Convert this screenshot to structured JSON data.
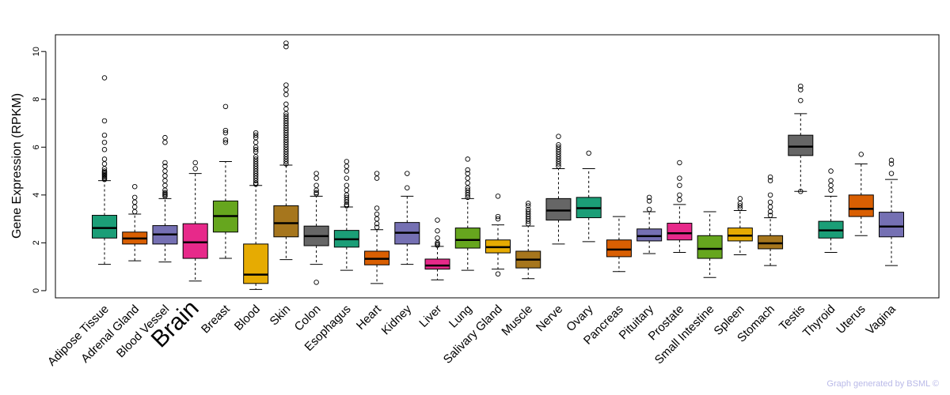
{
  "chart_data": {
    "type": "boxplot",
    "title": "",
    "xlabel": "",
    "ylabel": "Gene Expression (RPKM)",
    "ylim": [
      -0.3,
      10.7
    ],
    "yticks": [
      0,
      2,
      4,
      6,
      8,
      10
    ],
    "highlight": {
      "category": "Brain",
      "color": "#ff0000"
    },
    "categories": [
      "Adipose Tissue",
      "Adrenal Gland",
      "Blood Vessel",
      "Brain",
      "Breast",
      "Blood",
      "Skin",
      "Colon",
      "Esophagus",
      "Heart",
      "Kidney",
      "Liver",
      "Lung",
      "Salivary Gland",
      "Muscle",
      "Nerve",
      "Ovary",
      "Pancreas",
      "Pituitary",
      "Prostate",
      "Small Intestine",
      "Spleen",
      "Stomach",
      "Testis",
      "Thyroid",
      "Uterus",
      "Vagina"
    ],
    "series": [
      {
        "name": "Adipose Tissue",
        "color": "#1b9e77",
        "whisker_low": 1.1,
        "q1": 2.2,
        "median": 2.62,
        "q3": 3.15,
        "whisker_high": 4.6,
        "outliers": [
          4.65,
          4.7,
          4.75,
          4.8,
          4.85,
          4.9,
          4.95,
          5.0,
          5.1,
          5.3,
          5.5,
          5.9,
          6.2,
          6.5,
          7.1,
          8.9
        ]
      },
      {
        "name": "Adrenal Gland",
        "color": "#d95f02",
        "whisker_low": 1.25,
        "q1": 1.95,
        "median": 2.18,
        "q3": 2.45,
        "whisker_high": 3.2,
        "outliers": [
          3.3,
          3.5,
          3.7,
          3.9,
          4.35
        ]
      },
      {
        "name": "Blood Vessel",
        "color": "#7570b3",
        "whisker_low": 1.2,
        "q1": 1.95,
        "median": 2.35,
        "q3": 2.72,
        "whisker_high": 3.85,
        "outliers": [
          3.95,
          4.0,
          4.05,
          4.1,
          4.2,
          4.4,
          4.6,
          4.8,
          5.0,
          5.2,
          5.35,
          6.2,
          6.4
        ]
      },
      {
        "name": "Brain",
        "color": "#e7298a",
        "whisker_low": 0.4,
        "q1": 1.35,
        "median": 2.02,
        "q3": 2.8,
        "whisker_high": 4.9,
        "outliers": [
          5.1,
          5.35
        ]
      },
      {
        "name": "Breast",
        "color": "#66a61e",
        "whisker_low": 1.35,
        "q1": 2.45,
        "median": 3.12,
        "q3": 3.75,
        "whisker_high": 5.4,
        "outliers": [
          6.2,
          6.3,
          6.6,
          6.7,
          7.7
        ]
      },
      {
        "name": "Blood",
        "color": "#e6ab02",
        "whisker_low": 0.05,
        "q1": 0.3,
        "median": 0.67,
        "q3": 1.95,
        "whisker_high": 4.4,
        "outliers": [
          4.45,
          4.5,
          4.6,
          4.7,
          4.8,
          4.9,
          5.0,
          5.1,
          5.2,
          5.3,
          5.4,
          5.5,
          5.6,
          5.8,
          5.9,
          6.0,
          6.2,
          6.4,
          6.5,
          6.6
        ]
      },
      {
        "name": "Skin",
        "color": "#a6761d",
        "whisker_low": 1.3,
        "q1": 2.25,
        "median": 2.82,
        "q3": 3.55,
        "whisker_high": 5.25,
        "outliers": [
          5.3,
          5.4,
          5.5,
          5.6,
          5.7,
          5.8,
          5.9,
          6.0,
          6.1,
          6.2,
          6.3,
          6.4,
          6.5,
          6.6,
          6.7,
          6.8,
          6.9,
          7.0,
          7.1,
          7.2,
          7.3,
          7.4,
          7.6,
          7.8,
          8.2,
          8.4,
          8.6,
          10.2,
          10.35
        ]
      },
      {
        "name": "Colon",
        "color": "#666666",
        "whisker_low": 1.1,
        "q1": 1.88,
        "median": 2.28,
        "q3": 2.7,
        "whisker_high": 3.95,
        "outliers": [
          4.05,
          4.1,
          4.2,
          4.4,
          4.7,
          4.9,
          0.35
        ]
      },
      {
        "name": "Esophagus",
        "color": "#1b9e77",
        "whisker_low": 0.85,
        "q1": 1.82,
        "median": 2.15,
        "q3": 2.52,
        "whisker_high": 3.5,
        "outliers": [
          3.55,
          3.6,
          3.7,
          3.8,
          3.9,
          4.0,
          4.2,
          4.4,
          4.7,
          5.0,
          5.2,
          5.4
        ]
      },
      {
        "name": "Heart",
        "color": "#d95f02",
        "whisker_low": 0.3,
        "q1": 1.08,
        "median": 1.33,
        "q3": 1.65,
        "whisker_high": 2.55,
        "outliers": [
          2.65,
          2.8,
          3.0,
          3.2,
          3.45,
          4.7,
          4.9
        ]
      },
      {
        "name": "Kidney",
        "color": "#7570b3",
        "whisker_low": 1.1,
        "q1": 1.95,
        "median": 2.42,
        "q3": 2.85,
        "whisker_high": 3.95,
        "outliers": [
          4.3,
          4.9
        ]
      },
      {
        "name": "Liver",
        "color": "#e7298a",
        "whisker_low": 0.45,
        "q1": 0.9,
        "median": 1.05,
        "q3": 1.32,
        "whisker_high": 1.85,
        "outliers": [
          1.9,
          1.95,
          2.0,
          2.2,
          2.5,
          2.95
        ]
      },
      {
        "name": "Lung",
        "color": "#66a61e",
        "whisker_low": 0.85,
        "q1": 1.78,
        "median": 2.12,
        "q3": 2.62,
        "whisker_high": 3.85,
        "outliers": [
          3.9,
          4.0,
          4.1,
          4.2,
          4.3,
          4.5,
          4.7,
          4.9,
          5.05,
          5.5
        ]
      },
      {
        "name": "Salivary Gland",
        "color": "#e6ab02",
        "whisker_low": 0.9,
        "q1": 1.58,
        "median": 1.82,
        "q3": 2.12,
        "whisker_high": 2.75,
        "outliers": [
          3.0,
          3.1,
          3.95,
          0.7
        ]
      },
      {
        "name": "Muscle",
        "color": "#a6761d",
        "whisker_low": 0.5,
        "q1": 0.95,
        "median": 1.3,
        "q3": 1.65,
        "whisker_high": 2.7,
        "outliers": [
          2.8,
          2.9,
          3.0,
          3.1,
          3.2,
          3.3,
          3.4,
          3.55,
          3.65
        ]
      },
      {
        "name": "Nerve",
        "color": "#666666",
        "whisker_low": 1.95,
        "q1": 2.95,
        "median": 3.35,
        "q3": 3.85,
        "whisker_high": 5.1,
        "outliers": [
          5.2,
          5.3,
          5.4,
          5.5,
          5.6,
          5.7,
          5.8,
          5.9,
          6.0,
          6.1,
          6.45
        ]
      },
      {
        "name": "Ovary",
        "color": "#1b9e77",
        "whisker_low": 2.05,
        "q1": 3.05,
        "median": 3.45,
        "q3": 3.9,
        "whisker_high": 5.1,
        "outliers": [
          5.75
        ]
      },
      {
        "name": "Pancreas",
        "color": "#d95f02",
        "whisker_low": 0.8,
        "q1": 1.42,
        "median": 1.72,
        "q3": 2.12,
        "whisker_high": 3.1,
        "outliers": []
      },
      {
        "name": "Pituitary",
        "color": "#7570b3",
        "whisker_low": 1.55,
        "q1": 2.08,
        "median": 2.28,
        "q3": 2.58,
        "whisker_high": 3.3,
        "outliers": [
          3.4,
          3.75,
          3.9
        ]
      },
      {
        "name": "Prostate",
        "color": "#e7298a",
        "whisker_low": 1.6,
        "q1": 2.12,
        "median": 2.4,
        "q3": 2.82,
        "whisker_high": 3.6,
        "outliers": [
          3.8,
          4.0,
          4.4,
          4.7,
          5.35
        ]
      },
      {
        "name": "Small Intestine",
        "color": "#66a61e",
        "whisker_low": 0.55,
        "q1": 1.35,
        "median": 1.75,
        "q3": 2.3,
        "whisker_high": 3.3,
        "outliers": []
      },
      {
        "name": "Spleen",
        "color": "#e6ab02",
        "whisker_low": 1.5,
        "q1": 2.08,
        "median": 2.3,
        "q3": 2.62,
        "whisker_high": 3.35,
        "outliers": [
          3.45,
          3.55,
          3.65,
          3.85
        ]
      },
      {
        "name": "Stomach",
        "color": "#a6761d",
        "whisker_low": 1.05,
        "q1": 1.75,
        "median": 1.98,
        "q3": 2.3,
        "whisker_high": 3.05,
        "outliers": [
          3.15,
          3.3,
          3.5,
          3.7,
          4.0,
          4.6,
          4.75
        ]
      },
      {
        "name": "Testis",
        "color": "#666666",
        "whisker_low": 4.15,
        "q1": 5.65,
        "median": 6.02,
        "q3": 6.5,
        "whisker_high": 7.4,
        "outliers": [
          7.95,
          8.4,
          8.55,
          4.15
        ]
      },
      {
        "name": "Thyroid",
        "color": "#1b9e77",
        "whisker_low": 1.6,
        "q1": 2.2,
        "median": 2.52,
        "q3": 2.9,
        "whisker_high": 3.95,
        "outliers": [
          4.2,
          4.4,
          4.6,
          5.0
        ]
      },
      {
        "name": "Uterus",
        "color": "#d95f02",
        "whisker_low": 2.3,
        "q1": 3.1,
        "median": 3.42,
        "q3": 4.0,
        "whisker_high": 5.3,
        "outliers": [
          5.7
        ]
      },
      {
        "name": "Vagina",
        "color": "#7570b3",
        "whisker_low": 1.05,
        "q1": 2.25,
        "median": 2.68,
        "q3": 3.28,
        "whisker_high": 4.65,
        "outliers": [
          4.9,
          5.3,
          5.45
        ]
      }
    ]
  },
  "footer": {
    "credit": "Graph generated by BSML ©"
  }
}
